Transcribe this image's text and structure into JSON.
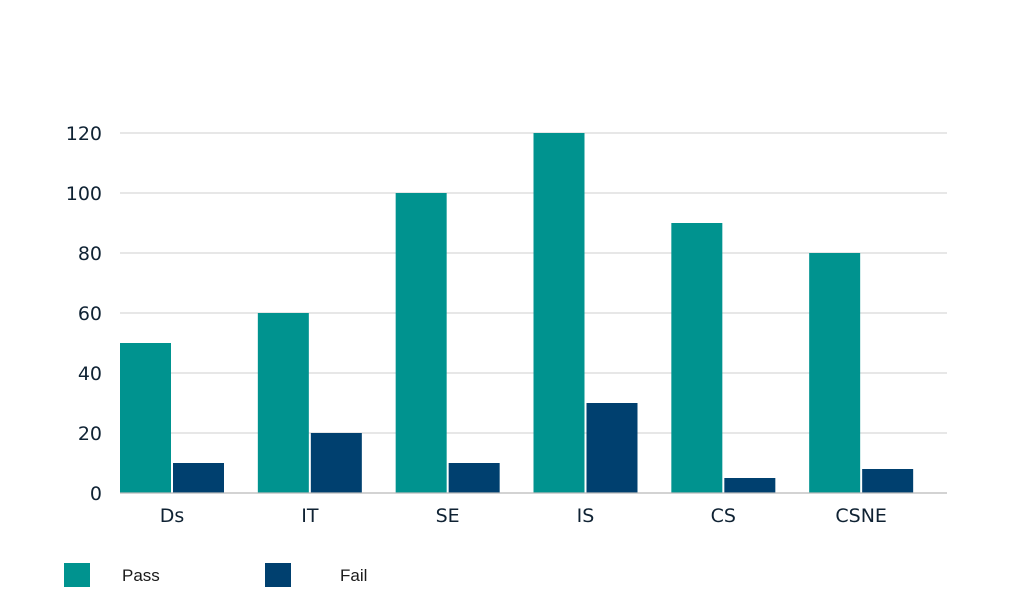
{
  "chart_data": {
    "type": "bar",
    "title": "",
    "xlabel": "",
    "ylabel": "",
    "categories": [
      "Ds",
      "IT",
      "SE",
      "IS",
      "CS",
      "CSNE"
    ],
    "series": [
      {
        "name": "Pass",
        "values": [
          50,
          60,
          100,
          120,
          90,
          80
        ],
        "color": "#00938f"
      },
      {
        "name": "Fail",
        "values": [
          10,
          20,
          10,
          30,
          5,
          8
        ],
        "color": "#00406f"
      }
    ],
    "ylim": [
      0,
      120
    ],
    "yticks": [
      0,
      20,
      40,
      60,
      80,
      100,
      120
    ],
    "grid": true,
    "legend_position": "bottom-left"
  }
}
